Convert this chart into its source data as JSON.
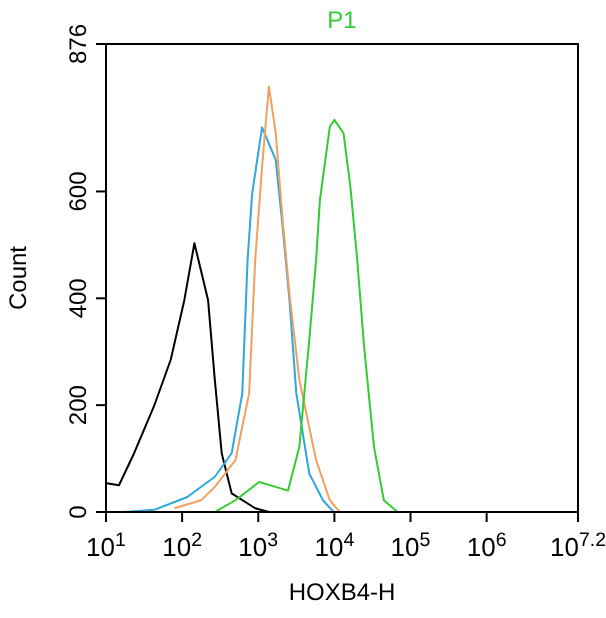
{
  "chart_data": {
    "type": "line",
    "title": "P1",
    "xlabel": "HOXB4-H",
    "ylabel": "Count",
    "log": "x",
    "xlim": [
      10,
      15848932
    ],
    "ylim": [
      0,
      876
    ],
    "xticks": [
      {
        "value": 10,
        "label": "10$^{1}$"
      },
      {
        "value": 100,
        "label": "10$^{2}$"
      },
      {
        "value": 1000,
        "label": "10$^{3}$"
      },
      {
        "value": 10000,
        "label": "10$^{4}$"
      },
      {
        "value": 100000,
        "label": "10$^{5}$"
      },
      {
        "value": 1000000,
        "label": "10$^{6}$"
      },
      {
        "value": 15848932,
        "label": "10$^{7.2}$"
      }
    ],
    "yticks": [
      0,
      200,
      400,
      600,
      876
    ],
    "grid": false,
    "marker": "none",
    "line_style": "solid",
    "series": [
      {
        "color": "#000000",
        "x": [
          10.2,
          14.8,
          23.4,
          42.7,
          70.8,
          107,
          145,
          219,
          269,
          331,
          447,
          912,
          1380
        ],
        "values": [
          54,
          50,
          110,
          198,
          285,
          397,
          503,
          397,
          247,
          110,
          35,
          7,
          0
        ]
      },
      {
        "color": "#2ea8d8",
        "x": [
          17,
          43,
          117,
          269,
          447,
          617,
          724,
          832,
          1122,
          1698,
          2089,
          2570,
          3162,
          4677,
          7079,
          9772
        ],
        "values": [
          0,
          4,
          28,
          66,
          110,
          222,
          472,
          596,
          720,
          659,
          534,
          397,
          222,
          72,
          22,
          0
        ]
      },
      {
        "color": "#f0a060",
        "x": [
          79,
          178,
          269,
          501,
          759,
          912,
          1122,
          1380,
          1698,
          2089,
          2570,
          3467,
          5754,
          8710,
          11749
        ],
        "values": [
          7,
          22,
          47,
          97,
          222,
          472,
          646,
          796,
          709,
          547,
          409,
          247,
          97,
          22,
          0
        ]
      },
      {
        "color": "#33cc33",
        "x": [
          269,
          501,
          1023,
          1698,
          2455,
          3467,
          4677,
          5754,
          6457,
          8710,
          10000,
          13183,
          16218,
          19953,
          24547,
          33113,
          44668,
          67608
        ],
        "values": [
          0,
          22,
          56,
          47,
          40,
          122,
          322,
          472,
          584,
          721,
          734,
          709,
          609,
          472,
          310,
          122,
          22,
          0
        ]
      }
    ]
  }
}
